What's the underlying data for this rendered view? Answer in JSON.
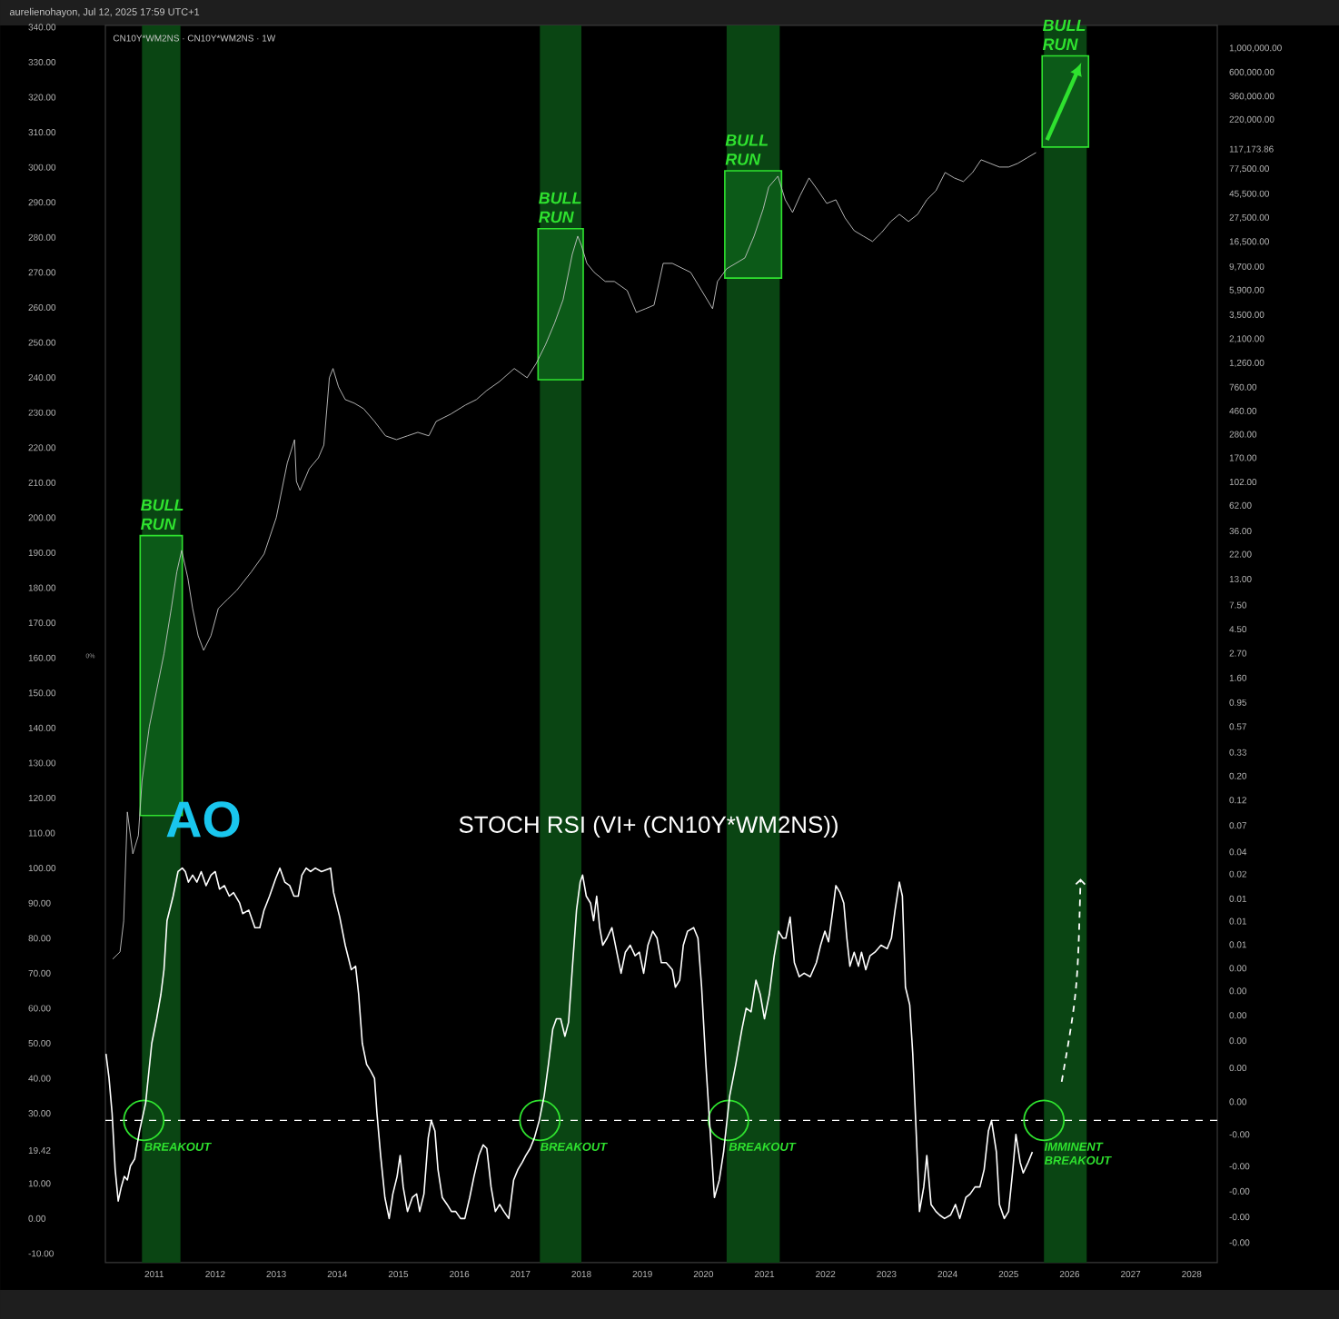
{
  "chart_data": {
    "type": "line",
    "title": "STOCH RSI (VI+ (CN10Y*WM2NS))",
    "subtitle": "CN10Y*WM2NS · CN10Y*WM2NS · 1W",
    "xlim": [
      2010.2,
      2028.42
    ],
    "xticks": [
      2011,
      2012,
      2013,
      2014,
      2015,
      2016,
      2017,
      2018,
      2019,
      2020,
      2021,
      2022,
      2023,
      2024,
      2025,
      2026,
      2027,
      2028
    ],
    "ylim": [
      -12.6,
      340.5
    ],
    "yticks": [
      {
        "value": -10,
        "label": "-10.00"
      },
      {
        "value": 0,
        "label": "0.00"
      },
      {
        "value": 10,
        "label": "10.00"
      },
      {
        "value": 19.42,
        "label": "19.42"
      },
      {
        "value": 30,
        "label": "30.00"
      },
      {
        "value": 40,
        "label": "40.00"
      },
      {
        "value": 50,
        "label": "50.00"
      },
      {
        "value": 60,
        "label": "60.00"
      },
      {
        "value": 70,
        "label": "70.00"
      },
      {
        "value": 80,
        "label": "80.00"
      },
      {
        "value": 90,
        "label": "90.00"
      },
      {
        "value": 100,
        "label": "100.00"
      },
      {
        "value": 110,
        "label": "110.00"
      },
      {
        "value": 120,
        "label": "120.00"
      },
      {
        "value": 130,
        "label": "130.00"
      },
      {
        "value": 140,
        "label": "140.00"
      },
      {
        "value": 150,
        "label": "150.00"
      },
      {
        "value": 160,
        "label": "160.00"
      },
      {
        "value": 170,
        "label": "170.00"
      },
      {
        "value": 180,
        "label": "180.00"
      },
      {
        "value": 190,
        "label": "190.00"
      },
      {
        "value": 200,
        "label": "200.00"
      },
      {
        "value": 210,
        "label": "210.00"
      },
      {
        "value": 220,
        "label": "220.00"
      },
      {
        "value": 230,
        "label": "230.00"
      },
      {
        "value": 240,
        "label": "240.00"
      },
      {
        "value": 250,
        "label": "250.00"
      },
      {
        "value": 260,
        "label": "260.00"
      },
      {
        "value": 270,
        "label": "270.00"
      },
      {
        "value": 280,
        "label": "280.00"
      },
      {
        "value": 290,
        "label": "290.00"
      },
      {
        "value": 300,
        "label": "300.00"
      },
      {
        "value": 310,
        "label": "310.00"
      },
      {
        "value": 320,
        "label": "320.00"
      },
      {
        "value": 330,
        "label": "330.00"
      },
      {
        "value": 340,
        "label": "340.00"
      }
    ],
    "y2lim": [
      6.6e-06,
      1630000
    ],
    "y2ticks": [
      {
        "value": 1000000,
        "label": "1,000,000.00"
      },
      {
        "value": 600000,
        "label": "600,000.00"
      },
      {
        "value": 360000,
        "label": "360,000.00"
      },
      {
        "value": 220000,
        "label": "220,000.00"
      },
      {
        "value": 117173.86,
        "label": "117,173.86"
      },
      {
        "value": 77500,
        "label": "77,500.00"
      },
      {
        "value": 45500,
        "label": "45,500.00"
      },
      {
        "value": 27500,
        "label": "27,500.00"
      },
      {
        "value": 16500,
        "label": "16,500.00"
      },
      {
        "value": 9700,
        "label": "9,700.00"
      },
      {
        "value": 5900,
        "label": "5,900.00"
      },
      {
        "value": 3500,
        "label": "3,500.00"
      },
      {
        "value": 2100,
        "label": "2,100.00"
      },
      {
        "value": 1260,
        "label": "1,260.00"
      },
      {
        "value": 760,
        "label": "760.00"
      },
      {
        "value": 460,
        "label": "460.00"
      },
      {
        "value": 280,
        "label": "280.00"
      },
      {
        "value": 170,
        "label": "170.00"
      },
      {
        "value": 102,
        "label": "102.00"
      },
      {
        "value": 62,
        "label": "62.00"
      },
      {
        "value": 36,
        "label": "36.00"
      },
      {
        "value": 22,
        "label": "22.00"
      },
      {
        "value": 13,
        "label": "13.00"
      },
      {
        "value": 7.5,
        "label": "7.50"
      },
      {
        "value": 4.5,
        "label": "4.50"
      },
      {
        "value": 2.7,
        "label": "2.70"
      },
      {
        "value": 1.6,
        "label": "1.60"
      },
      {
        "value": 0.95,
        "label": "0.95"
      },
      {
        "value": 0.57,
        "label": "0.57"
      },
      {
        "value": 0.33,
        "label": "0.33"
      },
      {
        "value": 0.2,
        "label": "0.20"
      },
      {
        "value": 0.12,
        "label": "0.12"
      },
      {
        "value": 0.07,
        "label": "0.07"
      },
      {
        "value": 0.04,
        "label": "0.04"
      },
      {
        "value": 0.025,
        "label": "0.02"
      },
      {
        "value": 0.0148,
        "label": "0.01"
      },
      {
        "value": 0.0092,
        "label": "0.01"
      },
      {
        "value": 0.0056,
        "label": "0.01"
      },
      {
        "value": 0.0034,
        "label": "0.00"
      },
      {
        "value": 0.0021,
        "label": "0.00"
      },
      {
        "value": 0.00125,
        "label": "0.00"
      },
      {
        "value": 0.00073,
        "label": "0.00"
      },
      {
        "value": 0.00041,
        "label": "0.00"
      },
      {
        "value": 0.0002,
        "label": "0.00"
      },
      {
        "value": 0.0001,
        "label": "-0.00"
      },
      {
        "value": 5.1e-05,
        "label": "-0.00"
      },
      {
        "value": 3e-05,
        "label": "-0.00"
      },
      {
        "value": 1.74e-05,
        "label": "-0.00"
      },
      {
        "value": 1.01e-05,
        "label": "-0.00"
      }
    ],
    "log": "y2",
    "series": [
      {
        "color": "#c4c4c4",
        "axis": "y2",
        "x": [
          2010.32,
          2010.44,
          2010.5,
          2010.56,
          2010.65,
          2010.74,
          2010.8,
          2010.92,
          2011.04,
          2011.16,
          2011.28,
          2011.37,
          2011.45,
          2011.55,
          2011.63,
          2011.72,
          2011.81,
          2011.93,
          2012.05,
          2012.2,
          2012.35,
          2012.59,
          2012.8,
          2013.0,
          2013.18,
          2013.3,
          2013.33,
          2013.39,
          2013.54,
          2013.69,
          2013.78,
          2013.87,
          2013.93,
          2014.02,
          2014.13,
          2014.28,
          2014.43,
          2014.61,
          2014.79,
          2014.97,
          2015.15,
          2015.32,
          2015.5,
          2015.62,
          2015.86,
          2016.1,
          2016.28,
          2016.45,
          2016.66,
          2016.9,
          2017.11,
          2017.26,
          2017.41,
          2017.56,
          2017.7,
          2017.85,
          2017.94,
          2018.0,
          2018.09,
          2018.21,
          2018.39,
          2018.54,
          2018.75,
          2018.9,
          2019.05,
          2019.19,
          2019.34,
          2019.49,
          2019.79,
          2019.97,
          2020.15,
          2020.23,
          2020.38,
          2020.53,
          2020.68,
          2020.83,
          2020.98,
          2021.07,
          2021.22,
          2021.34,
          2021.46,
          2021.58,
          2021.73,
          2021.88,
          2022.02,
          2022.17,
          2022.32,
          2022.47,
          2022.62,
          2022.77,
          2022.92,
          2023.07,
          2023.21,
          2023.36,
          2023.51,
          2023.66,
          2023.81,
          2023.96,
          2024.11,
          2024.26,
          2024.41,
          2024.55,
          2024.7,
          2024.85,
          2025.0,
          2025.15,
          2025.3,
          2025.45
        ],
        "values": [
          0.00412,
          0.0048,
          0.00924,
          0.0932,
          0.0384,
          0.0565,
          0.179,
          0.57,
          1.23,
          2.66,
          6.97,
          15.1,
          23.9,
          13.4,
          6.97,
          3.91,
          2.87,
          3.91,
          6.97,
          8.45,
          10.2,
          15.1,
          22.1,
          47.8,
          152,
          250,
          103,
          85.2,
          135,
          170,
          223,
          928,
          1130,
          765,
          585,
          541,
          482,
          368,
          271,
          250,
          271,
          292,
          271,
          368,
          430,
          521,
          585,
          709,
          859,
          1130,
          928,
          1260,
          1860,
          2950,
          4860,
          12700,
          18700,
          15400,
          10500,
          8670,
          7150,
          7150,
          5900,
          3710,
          4010,
          4330,
          10500,
          10500,
          8670,
          5900,
          4010,
          7150,
          9360,
          10500,
          11800,
          18700,
          33400,
          53000,
          66700,
          40400,
          30900,
          43700,
          64200,
          49000,
          37400,
          40400,
          27500,
          21000,
          18700,
          16700,
          20200,
          25500,
          29700,
          25500,
          29700,
          40400,
          49000,
          72100,
          64200,
          59500,
          72100,
          94400,
          87400,
          80900,
          80900,
          87400,
          98100,
          110000
        ]
      },
      {
        "color": "#ffffff",
        "x": [
          2010.21,
          2010.26,
          2010.31,
          2010.36,
          2010.41,
          2010.46,
          2010.51,
          2010.56,
          2010.61,
          2010.68,
          2010.76,
          2010.86,
          2010.96,
          2011.04,
          2011.11,
          2011.16,
          2011.21,
          2011.31,
          2011.39,
          2011.46,
          2011.51,
          2011.56,
          2011.63,
          2011.7,
          2011.77,
          2011.85,
          2011.93,
          2012.0,
          2012.07,
          2012.15,
          2012.23,
          2012.3,
          2012.4,
          2012.45,
          2012.55,
          2012.65,
          2012.73,
          2012.8,
          2012.89,
          2012.99,
          2013.06,
          2013.14,
          2013.22,
          2013.29,
          2013.36,
          2013.42,
          2013.49,
          2013.56,
          2013.64,
          2013.74,
          2013.89,
          2013.94,
          2014.04,
          2014.13,
          2014.23,
          2014.3,
          2014.35,
          2014.41,
          2014.48,
          2014.55,
          2014.61,
          2014.65,
          2014.71,
          2014.78,
          2014.85,
          2014.91,
          2014.98,
          2015.03,
          2015.08,
          2015.15,
          2015.23,
          2015.3,
          2015.35,
          2015.42,
          2015.49,
          2015.54,
          2015.6,
          2015.65,
          2015.72,
          2015.8,
          2015.87,
          2015.94,
          2016.02,
          2016.09,
          2016.17,
          2016.24,
          2016.32,
          2016.39,
          2016.45,
          2016.52,
          2016.59,
          2016.66,
          2016.73,
          2016.81,
          2016.89,
          2016.96,
          2017.03,
          2017.09,
          2017.16,
          2017.23,
          2017.31,
          2017.39,
          2017.46,
          2017.53,
          2017.59,
          2017.66,
          2017.73,
          2017.79,
          2017.85,
          2017.92,
          2017.98,
          2018.02,
          2018.08,
          2018.15,
          2018.2,
          2018.25,
          2018.3,
          2018.35,
          2018.42,
          2018.5,
          2018.58,
          2018.65,
          2018.72,
          2018.8,
          2018.88,
          2018.95,
          2019.02,
          2019.09,
          2019.17,
          2019.24,
          2019.31,
          2019.39,
          2019.49,
          2019.54,
          2019.61,
          2019.67,
          2019.74,
          2019.84,
          2019.91,
          2019.97,
          2020.04,
          2020.11,
          2020.18,
          2020.26,
          2020.33,
          2020.43,
          2020.53,
          2020.63,
          2020.7,
          2020.78,
          2020.86,
          2020.93,
          2021.0,
          2021.08,
          2021.16,
          2021.23,
          2021.3,
          2021.35,
          2021.42,
          2021.49,
          2021.57,
          2021.65,
          2021.75,
          2021.85,
          2021.92,
          2021.99,
          2022.05,
          2022.12,
          2022.17,
          2022.24,
          2022.3,
          2022.35,
          2022.4,
          2022.47,
          2022.54,
          2022.59,
          2022.66,
          2022.73,
          2022.81,
          2022.91,
          2023.01,
          2023.08,
          2023.14,
          2023.21,
          2023.26,
          2023.31,
          2023.38,
          2023.43,
          2023.49,
          2023.54,
          2023.61,
          2023.66,
          2023.73,
          2023.81,
          2023.87,
          2023.95,
          2024.05,
          2024.13,
          2024.2,
          2024.3,
          2024.37,
          2024.45,
          2024.53,
          2024.6,
          2024.67,
          2024.72,
          2024.8,
          2024.85,
          2024.93,
          2025.0,
          2025.07,
          2025.12,
          2025.19,
          2025.24,
          2025.32,
          2025.39
        ],
        "values": [
          47,
          40,
          30,
          14,
          5,
          9,
          12,
          11,
          15,
          17,
          25,
          33,
          50,
          57,
          64,
          71,
          85,
          92,
          99,
          100,
          99,
          96,
          98,
          96,
          99,
          95,
          98,
          99,
          94,
          95,
          92,
          93,
          90,
          87,
          88,
          83,
          83,
          88,
          92,
          97,
          100,
          96,
          95,
          92,
          92,
          98,
          100,
          99,
          100,
          99,
          100,
          93,
          86,
          78,
          71,
          72,
          64,
          50,
          44,
          42,
          40,
          30,
          18,
          6,
          0,
          7,
          12,
          18,
          9,
          2,
          6,
          7,
          2,
          7,
          23,
          28,
          25,
          14,
          6,
          4,
          2,
          2,
          0,
          0,
          6,
          12,
          18,
          21,
          20,
          9,
          2,
          4,
          2,
          0,
          11,
          14,
          16,
          18,
          20,
          23,
          28,
          35,
          44,
          54,
          57,
          57,
          52,
          56,
          71,
          88,
          96,
          98,
          92,
          90,
          85,
          92,
          83,
          78,
          80,
          83,
          76,
          70,
          76,
          78,
          75,
          76,
          70,
          78,
          82,
          80,
          73,
          73,
          71,
          66,
          68,
          78,
          82,
          83,
          80,
          66,
          44,
          25,
          6,
          11,
          19,
          35,
          44,
          54,
          60,
          59,
          68,
          64,
          57,
          64,
          75,
          82,
          80,
          80,
          86,
          73,
          69,
          70,
          69,
          73,
          78,
          82,
          79,
          88,
          95,
          93,
          90,
          80,
          72,
          76,
          72,
          76,
          71,
          75,
          76,
          78,
          77,
          80,
          88,
          96,
          92,
          66,
          61,
          47,
          23,
          2,
          9,
          18,
          4,
          2,
          1,
          0,
          1,
          4,
          0,
          6,
          7,
          9,
          9,
          14,
          25,
          28,
          19,
          4,
          0,
          2,
          14,
          24,
          16,
          13,
          16,
          19
        ]
      }
    ],
    "ref_lines": [
      {
        "axis": "y",
        "value": 28,
        "color": "#ffffff",
        "line_style": "dashed"
      }
    ],
    "bands": [
      {
        "axis": "x",
        "from": 2010.8,
        "to": 2011.43,
        "color": "#0a4513"
      },
      {
        "axis": "x",
        "from": 2017.32,
        "to": 2018.0,
        "color": "#0a4513"
      },
      {
        "axis": "x",
        "from": 2020.38,
        "to": 2021.25,
        "color": "#0a4513"
      },
      {
        "axis": "x",
        "from": 2025.58,
        "to": 2026.28,
        "color": "#0a4513"
      }
    ],
    "annotations": [
      "aurelienohayon, Jul 12, 2025 17:59 UTC+1",
      "0%",
      "AO",
      "BULL RUN",
      "BULL RUN",
      "BULL RUN",
      "BULL RUN",
      {
        "text": "BREAKOUT",
        "x": 2010.83,
        "y": 28
      },
      {
        "text": "BREAKOUT",
        "x": 2017.32,
        "y": 28
      },
      {
        "text": "BREAKOUT",
        "x": 2020.41,
        "y": 28
      },
      {
        "text": "IMMINENT BREAKOUT",
        "x": 2025.58,
        "y": 28
      }
    ]
  }
}
